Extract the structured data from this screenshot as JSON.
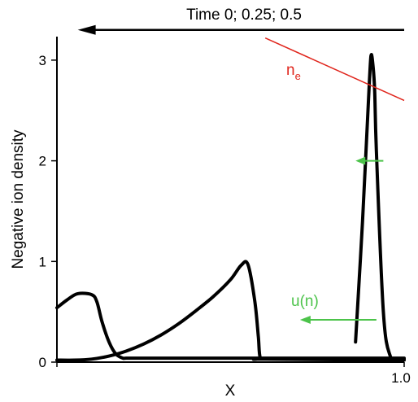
{
  "chart_data": {
    "type": "line",
    "title": "",
    "xlabel": "X",
    "ylabel": "Negative ion density",
    "xlim": [
      0,
      1.0
    ],
    "ylim": [
      0,
      3.1
    ],
    "x_ticks": [
      {
        "value": 0,
        "label": ""
      },
      {
        "value": 1.0,
        "label": "1.0"
      }
    ],
    "y_ticks": [
      {
        "value": 0,
        "label": "0"
      },
      {
        "value": 1,
        "label": "1"
      },
      {
        "value": 2,
        "label": "2"
      },
      {
        "value": 3,
        "label": "3"
      }
    ],
    "grid": false,
    "line_color": "#000000",
    "series": [
      {
        "label": "",
        "x": [
          0.86,
          0.88,
          0.9,
          0.905,
          0.91,
          0.915,
          0.92,
          0.94,
          0.96,
          0.985,
          1.0
        ],
        "y": [
          0.2,
          1.4,
          2.8,
          3.05,
          2.95,
          2.7,
          2.1,
          0.5,
          0.06,
          0.03,
          0.03
        ]
      },
      {
        "label": "",
        "x": [
          0.0,
          0.05,
          0.1,
          0.15,
          0.2,
          0.25,
          0.3,
          0.35,
          0.4,
          0.45,
          0.5,
          0.53,
          0.55,
          0.57,
          0.58,
          0.585,
          0.6,
          1.0
        ],
        "y": [
          0.02,
          0.02,
          0.03,
          0.06,
          0.11,
          0.18,
          0.27,
          0.38,
          0.51,
          0.65,
          0.82,
          0.96,
          0.97,
          0.6,
          0.25,
          0.05,
          0.03,
          0.02
        ]
      },
      {
        "label": "",
        "x": [
          0.0,
          0.03,
          0.06,
          0.1,
          0.115,
          0.13,
          0.15,
          0.17,
          0.19,
          0.2,
          0.25,
          0.5,
          1.0
        ],
        "y": [
          0.54,
          0.62,
          0.68,
          0.67,
          0.6,
          0.4,
          0.2,
          0.08,
          0.04,
          0.04,
          0.04,
          0.04,
          0.04
        ]
      }
    ],
    "annotations": {
      "time_arrow": {
        "label": "Time 0; 0.25; 0.5",
        "color": "#000000",
        "from_x": 1.0,
        "to_x": 0.06,
        "y": 3.3
      },
      "ne_line": {
        "label_base": "n",
        "label_sub": "e",
        "color": "#e0241b",
        "x1": 0.6,
        "y1": 3.22,
        "x2": 1.0,
        "y2": 2.6
      },
      "arrow_peak": {
        "color": "#4cc34a",
        "from_x": 0.94,
        "to_x": 0.86,
        "y": 2.0
      },
      "arrow_mid": {
        "color": "#4cc34a",
        "from_x": 0.92,
        "to_x": 0.7,
        "y": 0.42
      },
      "u_label": {
        "label": "u(n)",
        "color": "#4cc34a"
      }
    }
  }
}
